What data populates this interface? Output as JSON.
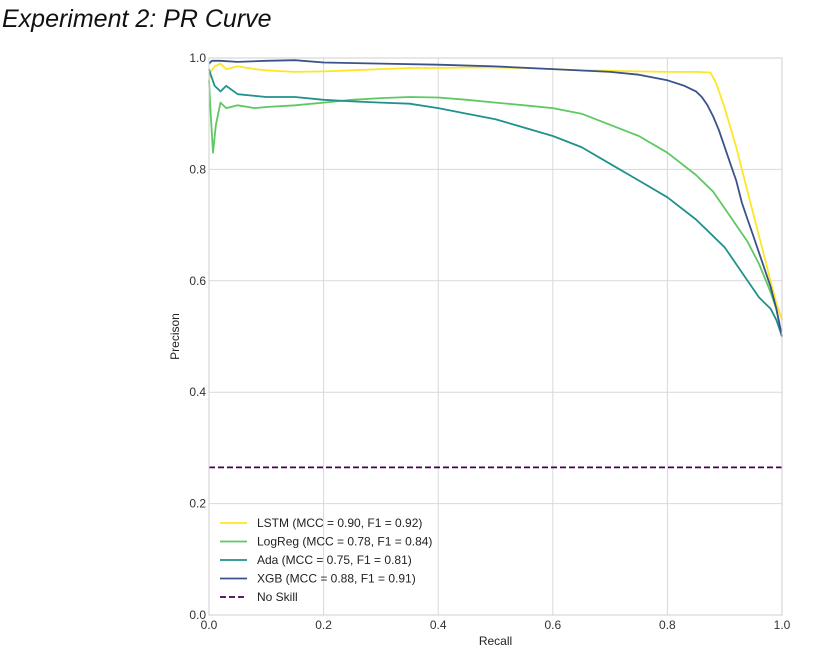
{
  "chart_data": {
    "type": "line",
    "title": "Experiment 2: PR Curve",
    "xlabel": "Recall",
    "ylabel": "Precison",
    "xlim": [
      0,
      1
    ],
    "ylim": [
      0,
      1
    ],
    "xticks": [
      "0.0",
      "0.2",
      "0.4",
      "0.6",
      "0.8",
      "1.0"
    ],
    "yticks": [
      "0.0",
      "0.2",
      "0.4",
      "0.6",
      "0.8",
      "1.0"
    ],
    "grid": true,
    "legend_position": "lower-left",
    "series": [
      {
        "name": "LSTM (MCC = 0.90, F1 = 0.92)",
        "color": "#fde725",
        "dash": "solid",
        "x": [
          0.0,
          0.003,
          0.01,
          0.02,
          0.03,
          0.05,
          0.08,
          0.1,
          0.15,
          0.2,
          0.25,
          0.3,
          0.35,
          0.4,
          0.45,
          0.5,
          0.55,
          0.6,
          0.65,
          0.7,
          0.75,
          0.8,
          0.85,
          0.875,
          0.885,
          0.9,
          0.92,
          0.94,
          0.96,
          0.97,
          0.98,
          0.99,
          1.0
        ],
        "y": [
          0.96,
          0.975,
          0.985,
          0.99,
          0.98,
          0.985,
          0.98,
          0.978,
          0.975,
          0.976,
          0.978,
          0.98,
          0.982,
          0.982,
          0.983,
          0.983,
          0.982,
          0.98,
          0.978,
          0.977,
          0.976,
          0.975,
          0.975,
          0.974,
          0.955,
          0.91,
          0.84,
          0.76,
          0.68,
          0.64,
          0.6,
          0.56,
          0.53
        ]
      },
      {
        "name": "LogReg (MCC = 0.78, F1 = 0.84)",
        "color": "#5ec962",
        "dash": "solid",
        "x": [
          0.0,
          0.003,
          0.007,
          0.012,
          0.02,
          0.03,
          0.05,
          0.08,
          0.1,
          0.15,
          0.2,
          0.25,
          0.3,
          0.35,
          0.4,
          0.45,
          0.5,
          0.55,
          0.6,
          0.65,
          0.7,
          0.75,
          0.8,
          0.85,
          0.88,
          0.9,
          0.92,
          0.94,
          0.96,
          0.98,
          0.99,
          1.0
        ],
        "y": [
          0.96,
          0.9,
          0.83,
          0.88,
          0.92,
          0.91,
          0.915,
          0.91,
          0.912,
          0.915,
          0.92,
          0.925,
          0.928,
          0.93,
          0.929,
          0.925,
          0.92,
          0.915,
          0.91,
          0.9,
          0.88,
          0.86,
          0.83,
          0.79,
          0.76,
          0.73,
          0.7,
          0.67,
          0.63,
          0.58,
          0.55,
          0.5
        ]
      },
      {
        "name": "Ada (MCC = 0.75, F1 = 0.81)",
        "color": "#21918c",
        "dash": "solid",
        "x": [
          0.0,
          0.003,
          0.01,
          0.02,
          0.03,
          0.05,
          0.1,
          0.15,
          0.2,
          0.25,
          0.3,
          0.35,
          0.4,
          0.45,
          0.5,
          0.55,
          0.6,
          0.65,
          0.7,
          0.75,
          0.8,
          0.85,
          0.88,
          0.9,
          0.92,
          0.94,
          0.96,
          0.98,
          0.99,
          1.0
        ],
        "y": [
          0.98,
          0.97,
          0.95,
          0.94,
          0.95,
          0.935,
          0.93,
          0.93,
          0.925,
          0.922,
          0.92,
          0.918,
          0.91,
          0.9,
          0.89,
          0.875,
          0.86,
          0.84,
          0.81,
          0.78,
          0.75,
          0.71,
          0.68,
          0.66,
          0.63,
          0.6,
          0.57,
          0.55,
          0.53,
          0.5
        ]
      },
      {
        "name": "XGB (MCC = 0.88, F1 = 0.91)",
        "color": "#3b528b",
        "dash": "solid",
        "x": [
          0.0,
          0.005,
          0.02,
          0.05,
          0.1,
          0.15,
          0.2,
          0.3,
          0.4,
          0.5,
          0.6,
          0.7,
          0.75,
          0.8,
          0.83,
          0.85,
          0.86,
          0.87,
          0.88,
          0.89,
          0.9,
          0.91,
          0.92,
          0.93,
          0.94,
          0.95,
          0.96,
          0.97,
          0.98,
          0.99,
          1.0
        ],
        "y": [
          0.99,
          0.995,
          0.995,
          0.993,
          0.995,
          0.996,
          0.992,
          0.99,
          0.988,
          0.985,
          0.98,
          0.975,
          0.97,
          0.96,
          0.95,
          0.94,
          0.93,
          0.915,
          0.895,
          0.87,
          0.84,
          0.81,
          0.78,
          0.74,
          0.71,
          0.68,
          0.65,
          0.62,
          0.59,
          0.55,
          0.5
        ]
      },
      {
        "name": "No Skill",
        "color": "#440154",
        "dash": "dashed",
        "x": [
          0.0,
          1.0
        ],
        "y": [
          0.265,
          0.265
        ]
      }
    ]
  }
}
